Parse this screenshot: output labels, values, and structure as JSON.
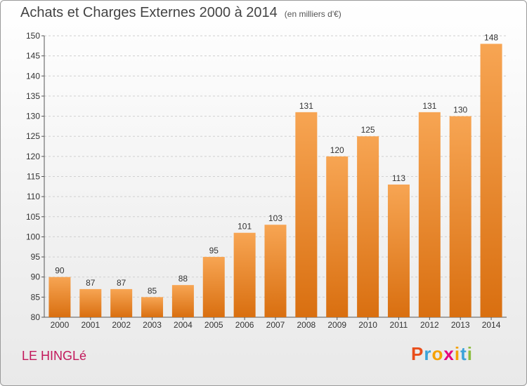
{
  "title": "Achats et Charges Externes 2000 à 2014",
  "subtitle": "(en milliers d'€)",
  "commune": "LE HINGLé",
  "logo": {
    "letters": [
      "P",
      "r",
      "o",
      "x",
      "i",
      "t",
      "i"
    ],
    "colors": [
      "#e94e1b",
      "#3aa3d9",
      "#f5a100",
      "#e6007e",
      "#f5a100",
      "#3aa3d9",
      "#8bbd3f"
    ]
  },
  "chart_data": {
    "type": "bar",
    "categories": [
      "2000",
      "2001",
      "2002",
      "2003",
      "2004",
      "2005",
      "2006",
      "2007",
      "2008",
      "2009",
      "2010",
      "2011",
      "2012",
      "2013",
      "2014"
    ],
    "values": [
      90,
      87,
      87,
      85,
      88,
      95,
      101,
      103,
      131,
      120,
      125,
      113,
      131,
      130,
      148
    ],
    "title": "Achats et Charges Externes 2000 à 2014",
    "ylim": [
      80,
      150
    ],
    "yticks": [
      80,
      85,
      90,
      95,
      100,
      105,
      110,
      115,
      120,
      125,
      130,
      135,
      140,
      145,
      150
    ],
    "bar_color_top": "#f7a553",
    "bar_color_bottom": "#d96f10",
    "grid": true
  }
}
